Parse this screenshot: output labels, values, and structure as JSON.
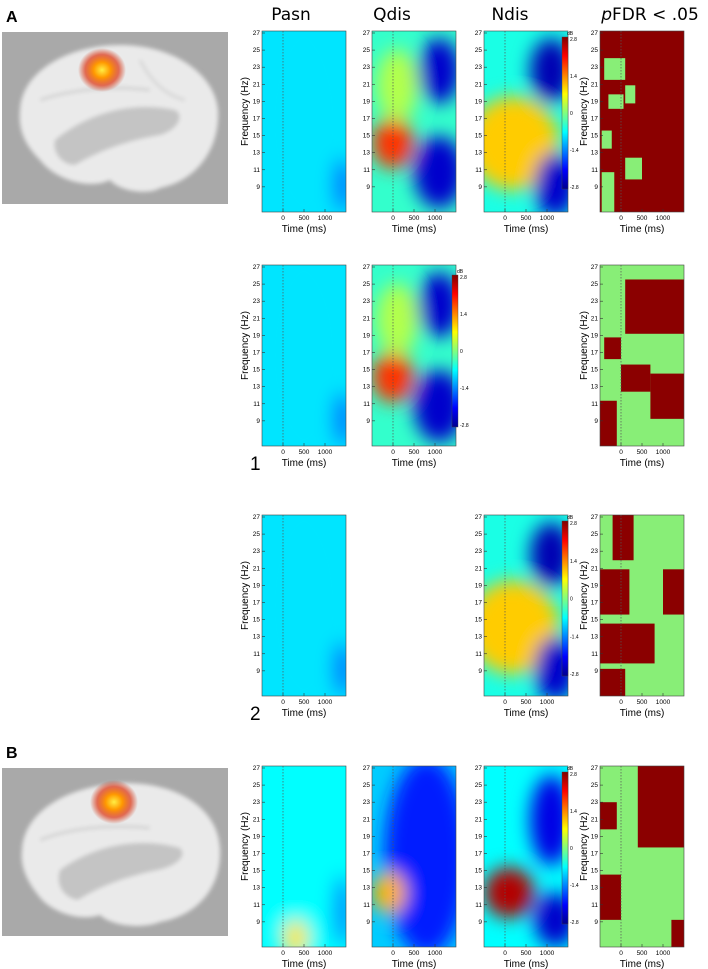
{
  "panel_labels": [
    "A",
    "B"
  ],
  "column_titles": {
    "pasn": "Pasn",
    "qdis": "Qdis",
    "ndis": "Ndis",
    "pfdr_italic": "p",
    "pfdr_rest": "FDR < .05"
  },
  "row_numbers": [
    "1",
    "2"
  ],
  "axes": {
    "xlabel": "Time (ms)",
    "ylabel": "Frequency (Hz)",
    "xticks": [
      "0",
      "500",
      "1000"
    ],
    "yticks": [
      "27",
      "25",
      "23",
      "21",
      "19",
      "17",
      "15",
      "13",
      "11",
      "9"
    ]
  },
  "colorbar": {
    "unit": "dB",
    "ticks": [
      "2.8",
      "1.4",
      "0",
      "-1.4",
      "-2.8"
    ],
    "colormap": "jet"
  },
  "significance_colors": {
    "significant": "#8b0000",
    "non_significant": "#88ee77"
  },
  "chart_data": {
    "type": "heatmap",
    "description_units": "time-frequency power change (dB)",
    "x": {
      "label": "Time (ms)",
      "range": [
        -500,
        1500
      ]
    },
    "y": {
      "label": "Frequency (Hz)",
      "range": [
        7,
        27
      ]
    },
    "color_range_db": [
      -2.8,
      2.8
    ],
    "rows": [
      {
        "panel": "A",
        "row": "A",
        "maps": {
          "pasn": "weak decrease (~-0.4 dB) throughout",
          "qdis": "increase ~+1.8 dB at 10-13 Hz around 0 ms; decrease ~-2.5 dB at 18-27 Hz and 8-12 Hz after 700 ms",
          "ndis": "increase ~+2.6 dB at 10-13 Hz, -300 to 700 ms; decrease ~-2.6 dB at 18-27 Hz and 8-12 Hz after 800 ms",
          "pfdr": "mostly significant"
        }
      },
      {
        "panel": "A",
        "row": "1",
        "maps": {
          "pasn": "weak decrease (~-0.4 dB) throughout",
          "qdis": "increase ~+1.8 dB at 10-13 Hz around 0 ms; decrease ~-2.5 dB at 18-27 Hz and 8-12 Hz after 700 ms",
          "pfdr": "mixed"
        }
      },
      {
        "panel": "A",
        "row": "2",
        "maps": {
          "pasn": "weak decrease (~-0.4 dB) throughout",
          "ndis": "increase ~+2.6 dB at 10-13 Hz, -300 to 700 ms; decrease ~-2.6 dB at 18-27 Hz and 8-12 Hz after 800 ms",
          "pfdr": "mixed"
        }
      },
      {
        "panel": "B",
        "row": "B",
        "maps": {
          "pasn": "weak, slight increase near 8 Hz at 0 ms",
          "qdis": "decrease ~-2 dB broadly after 500 ms",
          "ndis": "increase ~+2.4 dB at 10-13 Hz around 0 ms; decrease ~-2.6 dB after 800 ms",
          "pfdr": "mostly non-significant"
        }
      }
    ]
  }
}
